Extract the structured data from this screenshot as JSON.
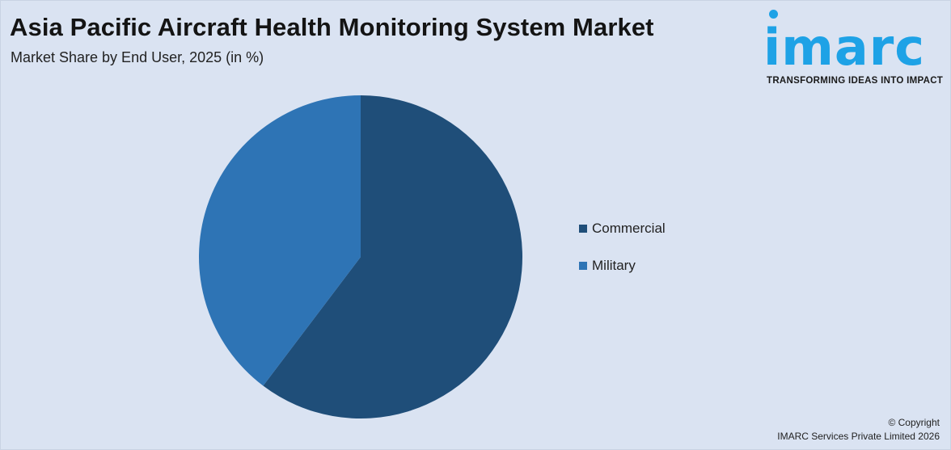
{
  "header": {
    "title": "Asia Pacific Aircraft Health Monitoring System Market",
    "subtitle": "Market Share by End User, 2025 (in %)"
  },
  "logo": {
    "word": "imarc",
    "tagline": "TRANSFORMING IDEAS INTO IMPACT",
    "color": "#1ea2e6"
  },
  "chart_data": {
    "type": "pie",
    "title": "Asia Pacific Aircraft Health Monitoring System Market",
    "subtitle": "Market Share by End User, 2025 (in %)",
    "categories": [
      "Commercial",
      "Military"
    ],
    "values": [
      60.3,
      39.7
    ],
    "colors": [
      "#1f4e79",
      "#2e74b5"
    ],
    "legend_position": "right",
    "start_angle": "12 o'clock",
    "direction": "clockwise"
  },
  "footer": {
    "copyright_line1": "© Copyright",
    "copyright_line2": "IMARC Services Private Limited 2026"
  }
}
